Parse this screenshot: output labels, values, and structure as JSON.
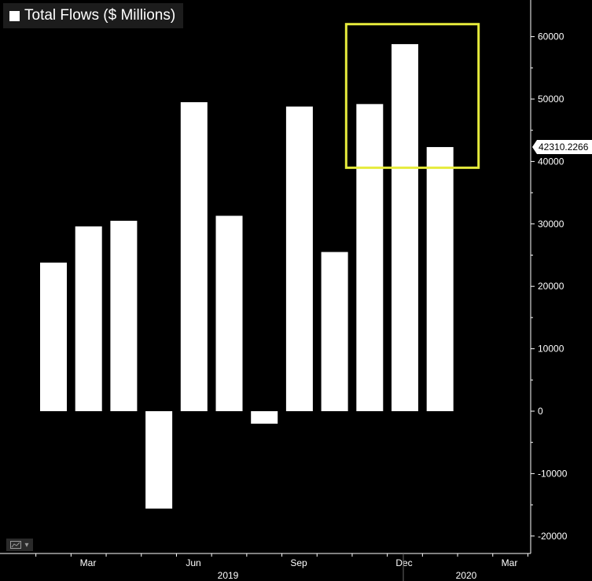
{
  "legend": {
    "label": "Total Flows ($ Millions)"
  },
  "last_value_label": "42310.2266",
  "toolbar": {
    "chart_type_icon": "line-chart-icon",
    "dropdown_icon": "chevron-down-icon"
  },
  "colors": {
    "bar": "#ffffff",
    "highlight_box": "#e6eb3c",
    "background": "#000000",
    "tag": "#ffffff"
  },
  "chart_data": {
    "type": "bar",
    "title": "",
    "xlabel": "",
    "ylabel": "",
    "categories": [
      "Feb 2019",
      "Mar 2019",
      "Apr 2019",
      "May 2019",
      "Jun 2019",
      "Jul 2019",
      "Aug 2019",
      "Sep 2019",
      "Oct 2019",
      "Nov 2019",
      "Dec 2019",
      "Jan 2020"
    ],
    "series": [
      {
        "name": "Total Flows ($ Millions)",
        "values": [
          23800,
          29600,
          30500,
          -15600,
          49500,
          31300,
          -2000,
          48800,
          25500,
          49200,
          58800,
          42310.2266
        ]
      }
    ],
    "ylim": [
      -22000,
      65000
    ],
    "yticks": [
      -20000,
      -10000,
      0,
      10000,
      20000,
      30000,
      40000,
      50000,
      60000
    ],
    "x_month_labels": [
      "Mar",
      "Jun",
      "Sep",
      "Dec",
      "Mar"
    ],
    "x_year_labels": [
      "2019",
      "2020"
    ],
    "highlight_box": {
      "from_category": "Nov 2019",
      "to_category": "Jan 2020",
      "y_low": 39000,
      "y_high": 62000
    },
    "legend_position": "top-left",
    "grid": false
  }
}
